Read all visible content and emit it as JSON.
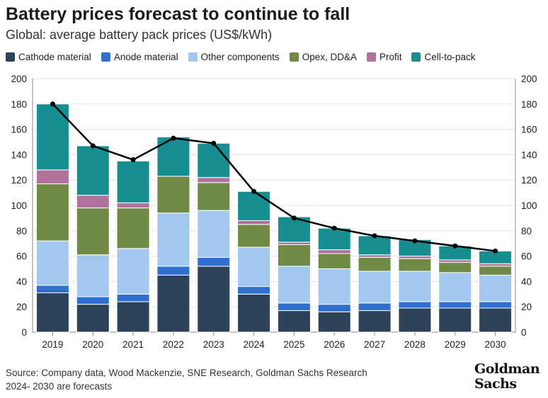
{
  "header": {
    "title": "Battery prices forecast to continue to fall",
    "subtitle": "Global: average battery pack prices (US$/kWh)"
  },
  "footer": {
    "source": "Source: Company data, Wood Mackenzie, SNE Research, Goldman Sachs Research",
    "note": "2024- 2030 are forecasts",
    "logo_line1": "Goldman",
    "logo_line2": "Sachs"
  },
  "chart_data": {
    "type": "bar",
    "stacked": true,
    "categories": [
      "2019",
      "2020",
      "2021",
      "2022",
      "2023",
      "2024",
      "2025",
      "2026",
      "2027",
      "2028",
      "2029",
      "2030"
    ],
    "series": [
      {
        "name": "Cathode material",
        "color": "#2e4259",
        "values": [
          31,
          22,
          24,
          45,
          52,
          30,
          17,
          16,
          17,
          19,
          19,
          19
        ]
      },
      {
        "name": "Anode material",
        "color": "#2f6fd0",
        "values": [
          6,
          6,
          6,
          7,
          7,
          6,
          6,
          6,
          6,
          5,
          5,
          5
        ]
      },
      {
        "name": "Other components",
        "color": "#a3c8f0",
        "values": [
          35,
          33,
          36,
          42,
          37,
          31,
          29,
          28,
          25,
          24,
          23,
          21
        ]
      },
      {
        "name": "Opex, DD&A",
        "color": "#6f8a45",
        "values": [
          45,
          37,
          32,
          29,
          22,
          18,
          17,
          12,
          11,
          10,
          8,
          7
        ]
      },
      {
        "name": "Profit",
        "color": "#b0719a",
        "values": [
          11,
          10,
          4,
          0,
          4,
          3,
          2,
          3,
          2,
          2,
          2,
          2
        ]
      },
      {
        "name": "Cell-to-pack",
        "color": "#178f92",
        "values": [
          52,
          39,
          33,
          31,
          27,
          23,
          20,
          17,
          15,
          13,
          11,
          10
        ]
      }
    ],
    "line": {
      "values": [
        180,
        147,
        136,
        153,
        149,
        111,
        90,
        82,
        76,
        72,
        68,
        64
      ],
      "color": "#000000"
    },
    "ylim": [
      0,
      200
    ],
    "yticks": [
      "0",
      "20",
      "40",
      "60",
      "80",
      "100",
      "120",
      "140",
      "160",
      "180",
      "200"
    ],
    "yaxis": "both sides",
    "legend": "top"
  }
}
